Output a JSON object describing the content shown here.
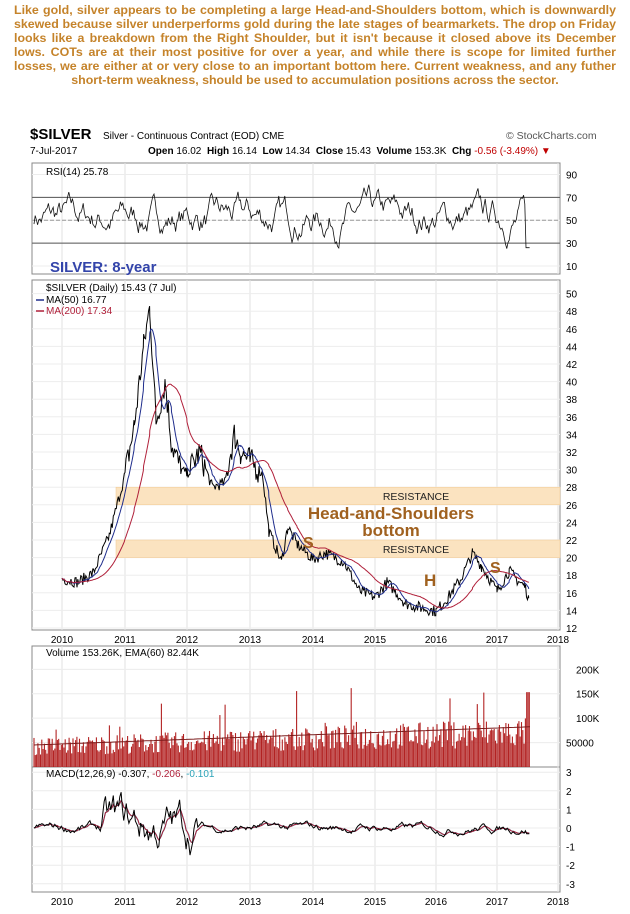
{
  "commentary": "Like gold, silver appears to be completing a large Head-and-Shoulders bottom, which is downwardly skewed because silver underperforms gold during the late stages of bearmarkets. The drop on Friday looks like a breakdown from the Right Shoulder, but it isn't because it closed above its December lows. COTs are at their most positive for over a year, and while there is scope for limited further losses, we are either at or very close to an important bottom here. Current weakness, and any futher short-term weakness, should be used to accumulation positions across the sector.",
  "header": {
    "symbol": "$SILVER",
    "description": "Silver - Continuous Contract (EOD) CME",
    "date": "7-Jul-2017",
    "open_label": "Open",
    "open": "16.02",
    "high_label": "High",
    "high": "16.14",
    "low_label": "Low",
    "low": "14.34",
    "close_label": "Close",
    "close": "15.43",
    "volume_label": "Volume",
    "volume": "153.3K",
    "chg_label": "Chg",
    "chg": "-0.56 (-3.49%)",
    "source": "© StockCharts.com"
  },
  "colors": {
    "commentary_text": "#c5832a",
    "price": "#000000",
    "ma50": "#1f2d8c",
    "ma200": "#b0203a",
    "volume_bars": "#b22222",
    "resistance_band": "#fbe3c0",
    "annotation": "#a0611f",
    "macd_line": "#000000",
    "macd_signal": "#b0203a",
    "macd_hist": "#2aa3b8"
  },
  "chart_data": [
    {
      "type": "line",
      "panel": "RSI",
      "legend": "RSI(14) 25.78",
      "ylim": [
        0,
        100
      ],
      "yticks": [
        "90",
        "70",
        "50",
        "30",
        "10"
      ],
      "reference_lines": [
        30,
        50,
        70
      ],
      "x": [
        "2010",
        "2011",
        "2012",
        "2013",
        "2014",
        "2015",
        "2016",
        "2017",
        "2018"
      ],
      "last_value": 25.78
    },
    {
      "type": "line",
      "panel": "Price",
      "legend": [
        "$SILVER (Daily) 15.43 (7 Jul)",
        "MA(50) 16.77",
        "MA(200) 17.34"
      ],
      "overlay_title": "SILVER: 8-year",
      "ylim": [
        12,
        50
      ],
      "yticks": [
        "50",
        "48",
        "46",
        "44",
        "42",
        "40",
        "38",
        "36",
        "34",
        "32",
        "30",
        "28",
        "26",
        "24",
        "22",
        "20",
        "18",
        "16",
        "14",
        "12"
      ],
      "x_labels": [
        "2010",
        "2011",
        "2012",
        "2013",
        "2014",
        "2015",
        "2016",
        "2017",
        "2018"
      ],
      "series": [
        {
          "name": "$SILVER",
          "x": [
            2009.5,
            2009.75,
            2010.0,
            2010.25,
            2010.5,
            2010.75,
            2011.0,
            2011.15,
            2011.3,
            2011.4,
            2011.5,
            2011.65,
            2011.75,
            2011.9,
            2012.0,
            2012.2,
            2012.4,
            2012.6,
            2012.75,
            2012.85,
            2013.0,
            2013.2,
            2013.3,
            2013.5,
            2013.6,
            2013.75,
            2014.0,
            2014.2,
            2014.5,
            2014.75,
            2015.0,
            2015.2,
            2015.5,
            2015.75,
            2016.0,
            2016.2,
            2016.4,
            2016.6,
            2016.75,
            2017.0,
            2017.2,
            2017.35,
            2017.45,
            2017.52
          ],
          "values": [
            14.2,
            16.8,
            17.6,
            17.2,
            18.3,
            22.5,
            29.5,
            35.0,
            44.0,
            48.5,
            35.5,
            40.0,
            33.0,
            30.0,
            29.5,
            32.0,
            28.0,
            28.5,
            34.0,
            32.0,
            31.0,
            29.5,
            23.0,
            19.5,
            23.5,
            21.5,
            19.8,
            20.5,
            19.5,
            16.2,
            15.5,
            17.2,
            14.8,
            14.3,
            13.9,
            15.5,
            17.5,
            20.5,
            19.0,
            16.2,
            18.5,
            17.3,
            16.8,
            15.4
          ]
        },
        {
          "name": "MA(50)",
          "last": 16.77
        },
        {
          "name": "MA(200)",
          "last": 17.34
        }
      ],
      "annotations": [
        "RESISTANCE",
        "RESISTANCE",
        "Head-and-Shoulders bottom",
        "S",
        "H",
        "S"
      ],
      "resistance_zones": [
        [
          26,
          28
        ],
        [
          20,
          22
        ]
      ]
    },
    {
      "type": "bar",
      "panel": "Volume",
      "legend": "Volume 153.26K, EMA(60) 82.44K",
      "yticks": [
        "200K",
        "150K",
        "100K",
        "50000"
      ],
      "ylim": [
        0,
        230000
      ],
      "last_value": 153260,
      "ema60": 82440
    },
    {
      "type": "line",
      "panel": "MACD",
      "legend": {
        "name": "MACD(12,26,9)",
        "macd": "-0.307",
        "signal": "-0.206",
        "hist": "-0.101"
      },
      "ylim": [
        -3,
        3
      ],
      "yticks": [
        "3",
        "2",
        "1",
        "0",
        "-1",
        "-2",
        "-3"
      ],
      "x_labels": [
        "2010",
        "2011",
        "2012",
        "2013",
        "2014",
        "2015",
        "2016",
        "2017",
        "2018"
      ]
    }
  ]
}
